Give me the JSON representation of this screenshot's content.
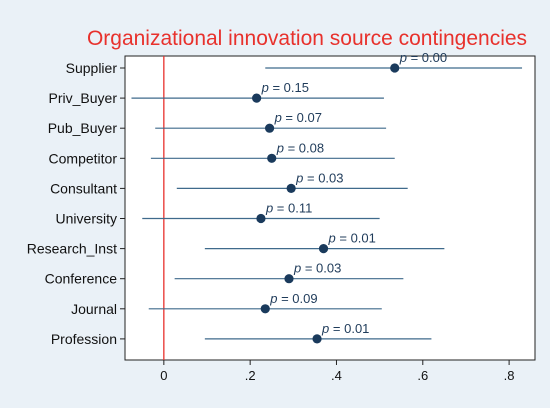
{
  "chart_data": {
    "type": "scatter",
    "subtype": "coefficient-plot-horizontal",
    "title": "Organizational innovation source contingencies",
    "xlabel": "",
    "ylabel": "",
    "xlim": [
      -0.09,
      0.86
    ],
    "x_ticks": [
      0,
      0.2,
      0.4,
      0.6,
      0.8
    ],
    "x_tick_labels": [
      "0",
      ".2",
      ".4",
      ".6",
      ".8"
    ],
    "reference_line": 0,
    "grid": false,
    "categories": [
      "Supplier",
      "Priv_Buyer",
      "Pub_Buyer",
      "Competitor",
      "Consultant",
      "University",
      "Research_Inst",
      "Conference",
      "Journal",
      "Profession"
    ],
    "estimates": [
      0.535,
      0.215,
      0.245,
      0.25,
      0.295,
      0.225,
      0.37,
      0.29,
      0.235,
      0.355
    ],
    "ci_low": [
      0.235,
      -0.075,
      -0.02,
      -0.03,
      0.03,
      -0.05,
      0.095,
      0.025,
      -0.035,
      0.095
    ],
    "ci_high": [
      0.83,
      0.51,
      0.515,
      0.535,
      0.565,
      0.5,
      0.65,
      0.555,
      0.505,
      0.62
    ],
    "p_labels": [
      "p = 0.00",
      "p = 0.15",
      "p = 0.07",
      "p = 0.08",
      "p = 0.03",
      "p = 0.11",
      "p = 0.01",
      "p = 0.03",
      "p = 0.09",
      "p = 0.01"
    ],
    "colors": {
      "title": "#e8312c",
      "reference_line": "#e8312c",
      "point": "#1a3a5c",
      "ci_line": "#3f6a8c",
      "p_label": "#1f3b5a",
      "plot_background": "#ffffff",
      "outer_background": "#eaf1f7"
    }
  }
}
